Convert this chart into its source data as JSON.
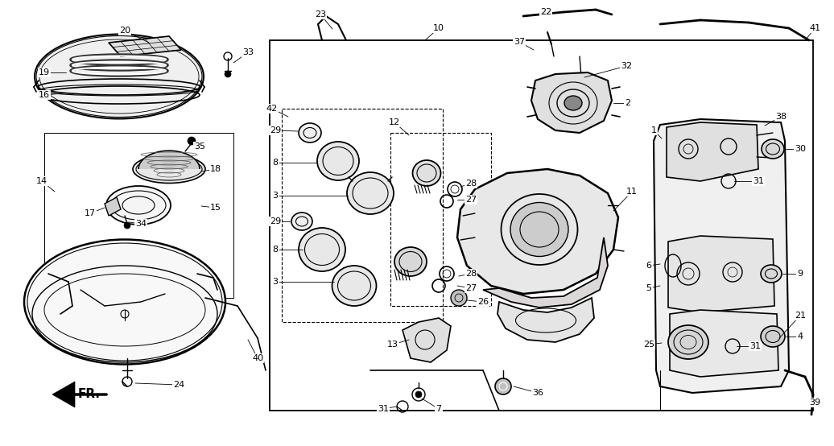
{
  "bg_color": "#ffffff",
  "fig_width": 10.36,
  "fig_height": 5.54,
  "dpi": 100,
  "line_color": "#000000",
  "label_fontsize": 8.0
}
